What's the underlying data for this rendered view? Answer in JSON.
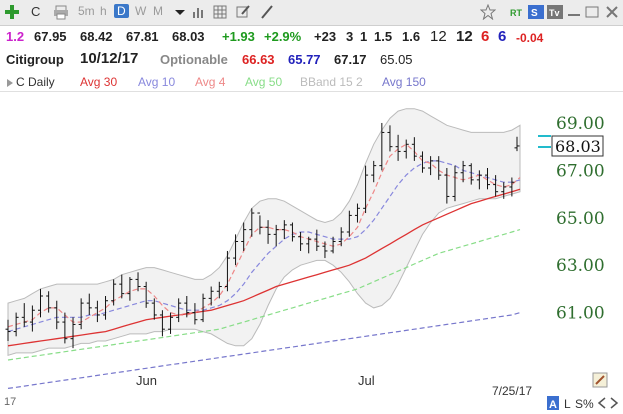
{
  "toolbar": {
    "symbol": "C",
    "periods": [
      "5m",
      "h",
      "D",
      "W",
      "M"
    ],
    "active_period": "D"
  },
  "quote": {
    "shares": "1.2",
    "open": "67.95",
    "high": "68.42",
    "low": "67.81",
    "last": "68.03",
    "change": "+1.93",
    "change_pct": "+2.9%",
    "stat1": "+23",
    "stat2": "3",
    "stat3": "1",
    "stat4": "1.5",
    "stat5": "1.6",
    "rank1": "12",
    "rank2": "12",
    "rank3": "6",
    "rank4": "6",
    "tail": "-0.04"
  },
  "name_row": {
    "name": "Citigroup",
    "date": "10/12/17",
    "optionable": "Optionable",
    "v1": "66.63",
    "v2": "65.77",
    "v3": "67.17",
    "v4": "65.05"
  },
  "indicators": {
    "c_daily": "C Daily",
    "avg30": "Avg 30",
    "avg10": "Avg 10",
    "avg4": "Avg 4",
    "avg50": "Avg 50",
    "bband": "BBand 15 2",
    "avg150": "Avg 150"
  },
  "colors": {
    "avg30": "#dd3333",
    "avg10": "#8888dd",
    "avg4": "#ee8888",
    "avg50": "#88dd88",
    "bband": "#bbbbbb",
    "avg150": "#7777cc",
    "price_axis": "#2f6e2f",
    "current_price_marker": "#22bbcc"
  },
  "chart_data": {
    "type": "ohlc",
    "y_ticks": [
      "69.00",
      "67.00",
      "65.00",
      "63.00",
      "61.00"
    ],
    "ylim": [
      59.0,
      69.8
    ],
    "x_labels": [
      "Jun",
      "Jul"
    ],
    "current_price": "68.03",
    "date_stamp": "7/25/17",
    "bottom_label": "17",
    "footer": {
      "a": "A",
      "l": "L",
      "s": "S%"
    },
    "bars": [
      {
        "o": 60.3,
        "h": 60.7,
        "l": 59.8,
        "c": 60.2
      },
      {
        "o": 60.2,
        "h": 61.0,
        "l": 60.0,
        "c": 60.8
      },
      {
        "o": 60.8,
        "h": 61.4,
        "l": 60.4,
        "c": 60.6
      },
      {
        "o": 60.6,
        "h": 61.3,
        "l": 60.2,
        "c": 61.1
      },
      {
        "o": 61.1,
        "h": 62.0,
        "l": 60.8,
        "c": 61.7
      },
      {
        "o": 61.7,
        "h": 61.9,
        "l": 61.0,
        "c": 61.2
      },
      {
        "o": 61.2,
        "h": 61.5,
        "l": 60.3,
        "c": 60.6
      },
      {
        "o": 60.6,
        "h": 61.0,
        "l": 59.7,
        "c": 59.9
      },
      {
        "o": 59.9,
        "h": 60.8,
        "l": 59.5,
        "c": 60.5
      },
      {
        "o": 60.5,
        "h": 61.6,
        "l": 60.3,
        "c": 61.4
      },
      {
        "o": 61.4,
        "h": 61.8,
        "l": 60.9,
        "c": 61.2
      },
      {
        "o": 61.2,
        "h": 61.5,
        "l": 60.6,
        "c": 60.9
      },
      {
        "o": 60.9,
        "h": 61.7,
        "l": 60.7,
        "c": 61.5
      },
      {
        "o": 61.5,
        "h": 62.4,
        "l": 61.3,
        "c": 62.2
      },
      {
        "o": 62.2,
        "h": 62.6,
        "l": 61.6,
        "c": 61.8
      },
      {
        "o": 61.8,
        "h": 62.5,
        "l": 61.5,
        "c": 62.4
      },
      {
        "o": 62.4,
        "h": 62.7,
        "l": 61.9,
        "c": 62.1
      },
      {
        "o": 62.1,
        "h": 62.3,
        "l": 61.2,
        "c": 61.4
      },
      {
        "o": 61.4,
        "h": 61.6,
        "l": 60.7,
        "c": 60.9
      },
      {
        "o": 60.9,
        "h": 61.1,
        "l": 60.0,
        "c": 60.3
      },
      {
        "o": 60.3,
        "h": 61.0,
        "l": 60.1,
        "c": 60.8
      },
      {
        "o": 60.8,
        "h": 61.6,
        "l": 60.6,
        "c": 61.4
      },
      {
        "o": 61.4,
        "h": 61.7,
        "l": 60.8,
        "c": 61.0
      },
      {
        "o": 61.0,
        "h": 61.4,
        "l": 60.5,
        "c": 60.7
      },
      {
        "o": 60.7,
        "h": 61.8,
        "l": 60.6,
        "c": 61.6
      },
      {
        "o": 61.6,
        "h": 62.1,
        "l": 61.3,
        "c": 61.9
      },
      {
        "o": 61.9,
        "h": 62.3,
        "l": 61.6,
        "c": 62.1
      },
      {
        "o": 62.1,
        "h": 63.6,
        "l": 61.9,
        "c": 63.3
      },
      {
        "o": 63.3,
        "h": 64.3,
        "l": 63.0,
        "c": 64.0
      },
      {
        "o": 64.0,
        "h": 64.8,
        "l": 63.6,
        "c": 64.5
      },
      {
        "o": 64.5,
        "h": 65.4,
        "l": 64.2,
        "c": 65.2
      },
      {
        "o": 65.2,
        "h": 65.1,
        "l": 64.3,
        "c": 64.6
      },
      {
        "o": 64.6,
        "h": 64.9,
        "l": 63.9,
        "c": 64.3
      },
      {
        "o": 64.3,
        "h": 64.7,
        "l": 63.8,
        "c": 64.5
      },
      {
        "o": 64.5,
        "h": 64.9,
        "l": 64.1,
        "c": 64.7
      },
      {
        "o": 64.7,
        "h": 64.8,
        "l": 64.0,
        "c": 64.2
      },
      {
        "o": 64.2,
        "h": 64.4,
        "l": 63.6,
        "c": 63.9
      },
      {
        "o": 63.9,
        "h": 64.2,
        "l": 63.5,
        "c": 64.1
      },
      {
        "o": 64.1,
        "h": 64.5,
        "l": 63.6,
        "c": 63.8
      },
      {
        "o": 63.8,
        "h": 64.0,
        "l": 63.3,
        "c": 63.6
      },
      {
        "o": 63.6,
        "h": 64.2,
        "l": 63.5,
        "c": 64.0
      },
      {
        "o": 64.0,
        "h": 64.6,
        "l": 63.8,
        "c": 64.4
      },
      {
        "o": 64.4,
        "h": 65.3,
        "l": 64.2,
        "c": 65.1
      },
      {
        "o": 65.1,
        "h": 65.6,
        "l": 64.8,
        "c": 65.4
      },
      {
        "o": 65.4,
        "h": 67.2,
        "l": 65.2,
        "c": 66.8
      },
      {
        "o": 66.8,
        "h": 67.4,
        "l": 66.5,
        "c": 67.2
      },
      {
        "o": 67.2,
        "h": 69.0,
        "l": 67.0,
        "c": 68.6
      },
      {
        "o": 68.6,
        "h": 68.9,
        "l": 67.8,
        "c": 68.0
      },
      {
        "o": 68.0,
        "h": 68.5,
        "l": 67.4,
        "c": 67.8
      },
      {
        "o": 67.8,
        "h": 68.3,
        "l": 67.5,
        "c": 68.1
      },
      {
        "o": 68.1,
        "h": 68.4,
        "l": 67.4,
        "c": 67.6
      },
      {
        "o": 67.6,
        "h": 67.8,
        "l": 66.9,
        "c": 67.1
      },
      {
        "o": 67.1,
        "h": 67.6,
        "l": 66.8,
        "c": 67.4
      },
      {
        "o": 67.4,
        "h": 67.6,
        "l": 66.6,
        "c": 66.8
      },
      {
        "o": 66.8,
        "h": 67.1,
        "l": 65.6,
        "c": 65.9
      },
      {
        "o": 65.9,
        "h": 67.2,
        "l": 65.7,
        "c": 66.9
      },
      {
        "o": 66.9,
        "h": 67.4,
        "l": 66.5,
        "c": 67.2
      },
      {
        "o": 67.2,
        "h": 67.3,
        "l": 66.4,
        "c": 66.6
      },
      {
        "o": 66.6,
        "h": 67.0,
        "l": 66.2,
        "c": 66.8
      },
      {
        "o": 66.8,
        "h": 67.1,
        "l": 66.2,
        "c": 66.4
      },
      {
        "o": 66.4,
        "h": 66.8,
        "l": 65.9,
        "c": 66.1
      },
      {
        "o": 66.1,
        "h": 66.5,
        "l": 65.8,
        "c": 66.3
      },
      {
        "o": 66.3,
        "h": 66.7,
        "l": 65.9,
        "c": 66.5
      },
      {
        "o": 67.95,
        "h": 68.42,
        "l": 67.81,
        "c": 68.03
      }
    ],
    "avg4": [
      60.4,
      60.5,
      60.6,
      60.7,
      61.0,
      61.2,
      61.2,
      60.9,
      60.6,
      60.6,
      60.8,
      61.0,
      61.2,
      61.5,
      61.7,
      61.9,
      62.0,
      62.0,
      61.7,
      61.3,
      61.0,
      60.9,
      60.9,
      61.0,
      61.2,
      61.4,
      61.7,
      62.2,
      62.9,
      63.6,
      64.3,
      64.6,
      64.6,
      64.5,
      64.5,
      64.4,
      64.2,
      64.1,
      64.0,
      63.9,
      63.8,
      63.9,
      64.2,
      64.6,
      65.4,
      66.1,
      66.9,
      67.6,
      67.9,
      68.1,
      67.8,
      67.4,
      67.3,
      67.0,
      66.8,
      66.7,
      66.6,
      66.7,
      66.8,
      66.6,
      66.4,
      66.3,
      66.4,
      66.7
    ],
    "avg10": [
      60.2,
      60.3,
      60.4,
      60.5,
      60.6,
      60.7,
      60.8,
      60.8,
      60.8,
      60.8,
      60.9,
      60.9,
      61.0,
      61.1,
      61.2,
      61.3,
      61.4,
      61.5,
      61.5,
      61.4,
      61.3,
      61.2,
      61.1,
      61.1,
      61.1,
      61.2,
      61.3,
      61.5,
      61.8,
      62.2,
      62.7,
      63.1,
      63.5,
      63.8,
      64.1,
      64.3,
      64.4,
      64.4,
      64.3,
      64.2,
      64.1,
      64.1,
      64.1,
      64.2,
      64.5,
      64.9,
      65.4,
      65.9,
      66.4,
      66.8,
      67.1,
      67.3,
      67.4,
      67.4,
      67.3,
      67.2,
      67.0,
      66.9,
      66.8,
      66.7,
      66.6,
      66.5,
      66.5,
      66.6
    ],
    "avg30": [
      59.6,
      59.65,
      59.7,
      59.75,
      59.8,
      59.85,
      59.9,
      59.95,
      60.0,
      60.05,
      60.1,
      60.15,
      60.2,
      60.3,
      60.4,
      60.5,
      60.6,
      60.7,
      60.75,
      60.8,
      60.85,
      60.9,
      60.95,
      61.0,
      61.05,
      61.1,
      61.2,
      61.3,
      61.4,
      61.5,
      61.65,
      61.8,
      61.95,
      62.1,
      62.2,
      62.3,
      62.4,
      62.5,
      62.6,
      62.7,
      62.8,
      62.9,
      63.0,
      63.15,
      63.3,
      63.5,
      63.7,
      63.9,
      64.1,
      64.3,
      64.5,
      64.7,
      64.85,
      65.0,
      65.15,
      65.3,
      65.45,
      65.6,
      65.7,
      65.8,
      65.9,
      66.0,
      66.1,
      66.2
    ],
    "avg50": [
      59.0,
      59.05,
      59.1,
      59.15,
      59.2,
      59.25,
      59.3,
      59.35,
      59.4,
      59.45,
      59.5,
      59.55,
      59.6,
      59.65,
      59.7,
      59.75,
      59.8,
      59.85,
      59.9,
      59.95,
      60.0,
      60.05,
      60.1,
      60.15,
      60.2,
      60.25,
      60.3,
      60.4,
      60.5,
      60.6,
      60.7,
      60.8,
      60.9,
      61.0,
      61.1,
      61.2,
      61.3,
      61.4,
      61.5,
      61.6,
      61.7,
      61.8,
      61.9,
      62.0,
      62.15,
      62.3,
      62.45,
      62.6,
      62.75,
      62.9,
      63.05,
      63.2,
      63.35,
      63.5,
      63.6,
      63.7,
      63.8,
      63.9,
      64.0,
      64.1,
      64.2,
      64.3,
      64.4,
      64.5
    ],
    "avg150": [
      57.8,
      57.85,
      57.9,
      57.95,
      58.0,
      58.05,
      58.1,
      58.15,
      58.2,
      58.25,
      58.3,
      58.35,
      58.4,
      58.45,
      58.5,
      58.55,
      58.6,
      58.65,
      58.7,
      58.75,
      58.8,
      58.85,
      58.9,
      58.95,
      59.0,
      59.05,
      59.1,
      59.15,
      59.2,
      59.25,
      59.3,
      59.35,
      59.4,
      59.45,
      59.5,
      59.55,
      59.6,
      59.65,
      59.7,
      59.75,
      59.8,
      59.85,
      59.9,
      59.95,
      60.0,
      60.05,
      60.1,
      60.15,
      60.2,
      60.25,
      60.3,
      60.35,
      60.4,
      60.45,
      60.5,
      60.55,
      60.6,
      60.65,
      60.7,
      60.75,
      60.8,
      60.85,
      60.9,
      61.0
    ],
    "bb_upper": [
      61.4,
      61.5,
      61.6,
      61.8,
      62.0,
      62.1,
      62.2,
      62.2,
      62.2,
      62.2,
      62.2,
      62.2,
      62.3,
      62.4,
      62.6,
      62.7,
      62.8,
      62.9,
      62.9,
      62.8,
      62.7,
      62.6,
      62.5,
      62.4,
      62.4,
      62.6,
      62.9,
      63.4,
      64.1,
      64.8,
      65.4,
      65.7,
      65.8,
      65.8,
      65.7,
      65.5,
      65.3,
      65.1,
      64.9,
      64.8,
      64.9,
      65.2,
      65.7,
      66.4,
      67.3,
      68.1,
      68.7,
      69.2,
      69.5,
      69.6,
      69.6,
      69.5,
      69.3,
      69.1,
      68.9,
      68.8,
      68.7,
      68.6,
      68.6,
      68.6,
      68.6,
      68.6,
      68.7,
      68.9
    ],
    "bb_lower": [
      59.2,
      59.3,
      59.3,
      59.3,
      59.4,
      59.5,
      59.5,
      59.5,
      59.6,
      59.7,
      59.7,
      59.8,
      59.8,
      59.9,
      60.0,
      60.1,
      60.1,
      60.1,
      60.2,
      60.2,
      60.3,
      60.3,
      60.3,
      60.3,
      60.2,
      60.1,
      59.9,
      59.7,
      59.6,
      59.6,
      59.9,
      60.5,
      61.3,
      62.0,
      62.5,
      62.8,
      63.0,
      63.1,
      63.2,
      63.2,
      63.0,
      62.7,
      62.3,
      61.8,
      61.4,
      61.2,
      61.3,
      61.6,
      62.2,
      62.9,
      63.6,
      64.3,
      64.8,
      65.2,
      65.4,
      65.5,
      65.6,
      65.7,
      65.8,
      65.8,
      65.8,
      65.9,
      66.0,
      66.1
    ]
  }
}
